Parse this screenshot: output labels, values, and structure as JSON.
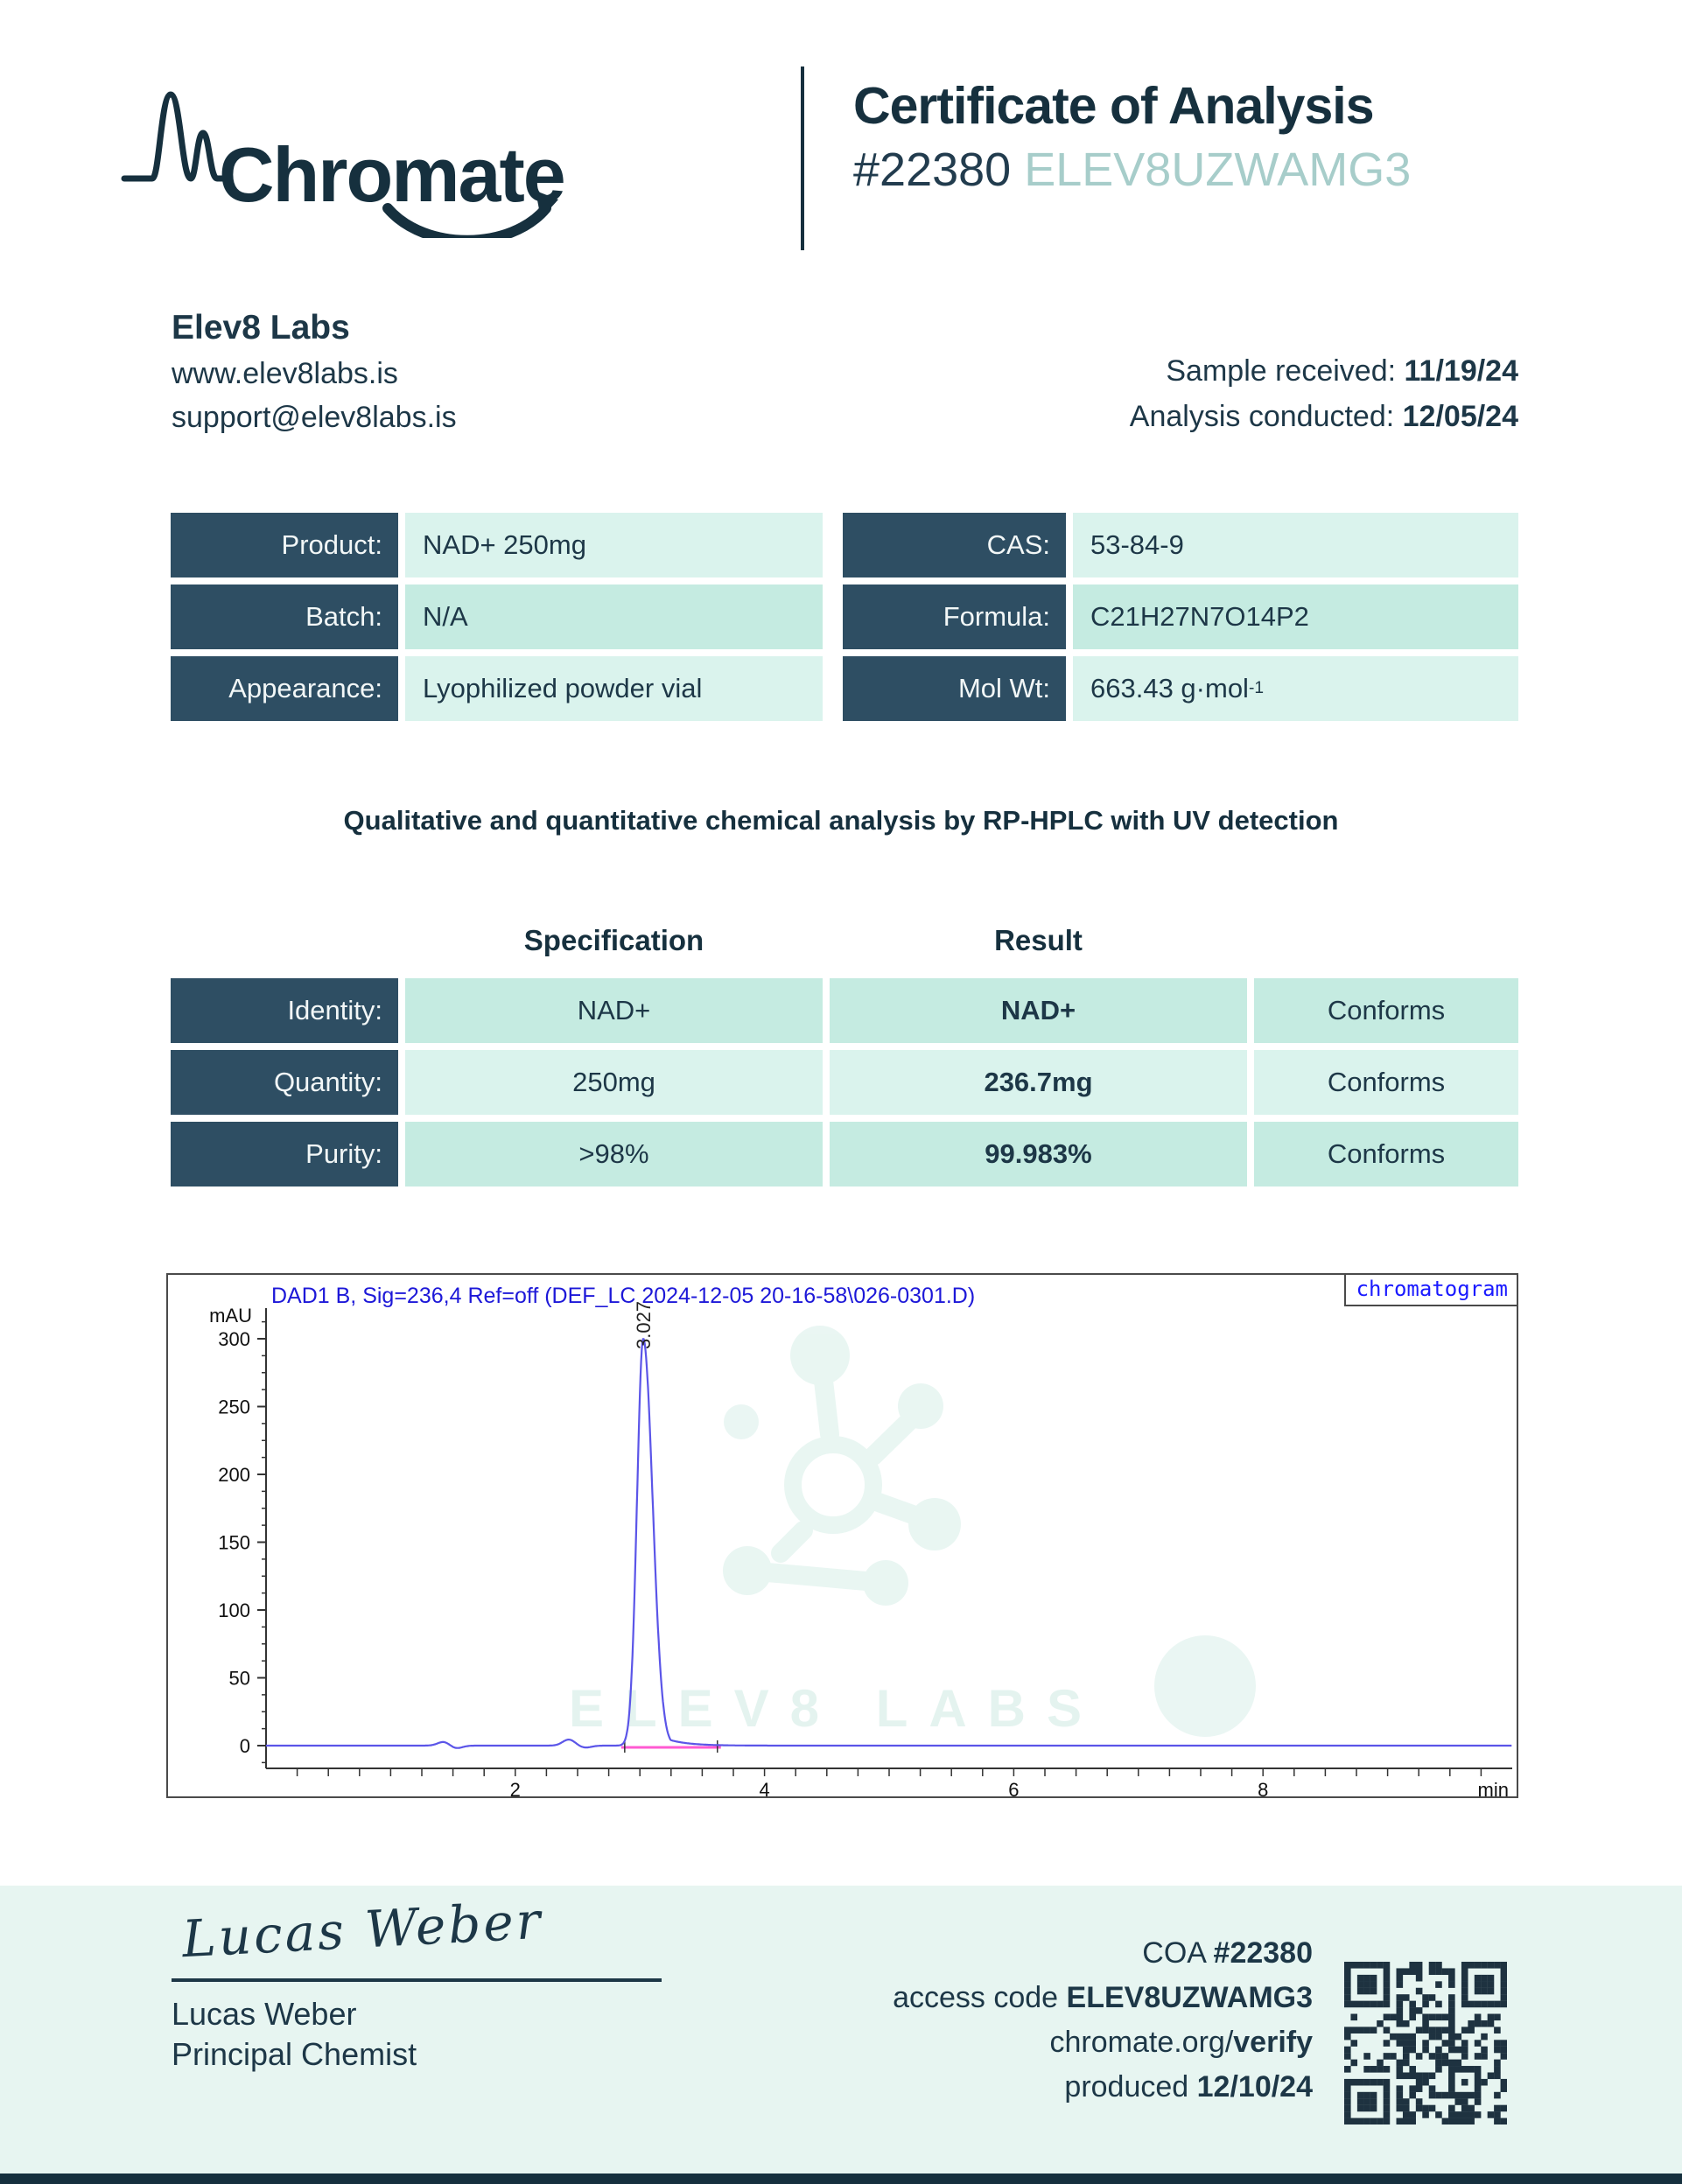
{
  "header": {
    "brand": "Chromate",
    "title": "Certificate of Analysis",
    "coa_number": "#22380",
    "access_code": "ELEV8UZWAMG3"
  },
  "lab": {
    "name": "Elev8 Labs",
    "website": "www.elev8labs.is",
    "email": "support@elev8labs.is"
  },
  "dates": {
    "received_label": "Sample received: ",
    "received": "11/19/24",
    "conducted_label": "Analysis conducted: ",
    "conducted": "12/05/24"
  },
  "product_details": {
    "left": [
      {
        "label": "Product:",
        "value": "NAD+ 250mg"
      },
      {
        "label": "Batch:",
        "value": "N/A"
      },
      {
        "label": "Appearance:",
        "value": "Lyophilized powder vial"
      }
    ],
    "right": [
      {
        "label": "CAS:",
        "value": "53-84-9"
      },
      {
        "label": "Formula:",
        "value": "C21H27N7O14P2"
      },
      {
        "label": "Mol Wt:",
        "value": "663.43 g·mol",
        "sup": "-1"
      }
    ]
  },
  "method_statement": "Qualitative and quantitative chemical analysis by RP-HPLC with UV detection",
  "results_table": {
    "spec_header": "Specification",
    "result_header": "Result",
    "rows": [
      {
        "label": "Identity:",
        "spec": "NAD+",
        "result": "NAD+",
        "status": "Conforms"
      },
      {
        "label": "Quantity:",
        "spec": "250mg",
        "result": "236.7mg",
        "status": "Conforms"
      },
      {
        "label": "Purity:",
        "spec": ">98%",
        "result": "99.983%",
        "status": "Conforms"
      }
    ]
  },
  "chart_data": {
    "type": "line",
    "title": "DAD1 B, Sig=236,4 Ref=off (DEF_LC 2024-12-05 20-16-58\\026-0301.D)",
    "corner_label": "chromatogram",
    "ylabel": "mAU",
    "xlabel": "min",
    "xlim": [
      0,
      10
    ],
    "ylim": [
      -15,
      327
    ],
    "x_ticks": [
      2,
      4,
      6,
      8
    ],
    "x_minor_step": 0.25,
    "y_ticks": [
      0,
      50,
      100,
      150,
      200,
      250,
      300
    ],
    "y_minor_step": 12.5,
    "series": [
      {
        "name": "DAD1 B",
        "peak": {
          "retention_time": 3.027,
          "height_mau": 300,
          "label": "3.027",
          "integration_start": 2.85,
          "integration_end": 3.65
        },
        "baseline_bumps": [
          {
            "x": 1.43,
            "h": 3
          },
          {
            "x": 1.52,
            "h": -2.2
          },
          {
            "x": 2.43,
            "h": 4.5
          },
          {
            "x": 2.56,
            "h": -1.5
          }
        ]
      }
    ],
    "line_color": "#5b55e8",
    "integration_color": "#ff5ad2",
    "watermark_text": "ELEV8 LABS",
    "legend_position": "none",
    "grid": false
  },
  "footer": {
    "signature_script": "Lucas Weber",
    "signer_name": "Lucas Weber",
    "signer_title": "Principal Chemist",
    "coa_label": "COA ",
    "coa_number": "#22380",
    "access_label": "access code ",
    "access_code": "ELEV8UZWAMG3",
    "verify_url_plain": "chromate.org/",
    "verify_url_bold": "verify",
    "produced_label": "produced ",
    "produced_date": "12/10/24"
  },
  "colors": {
    "navy": "#1d3747",
    "label_cell": "#2e4e63",
    "teal_light": "#daf3ed",
    "teal_mid": "#c5ebe1",
    "access_teal": "#a7cdca",
    "footer_bg": "#e7f5f1",
    "chart_blue": "#1d18d8",
    "qr_dark": "#1e3240"
  }
}
